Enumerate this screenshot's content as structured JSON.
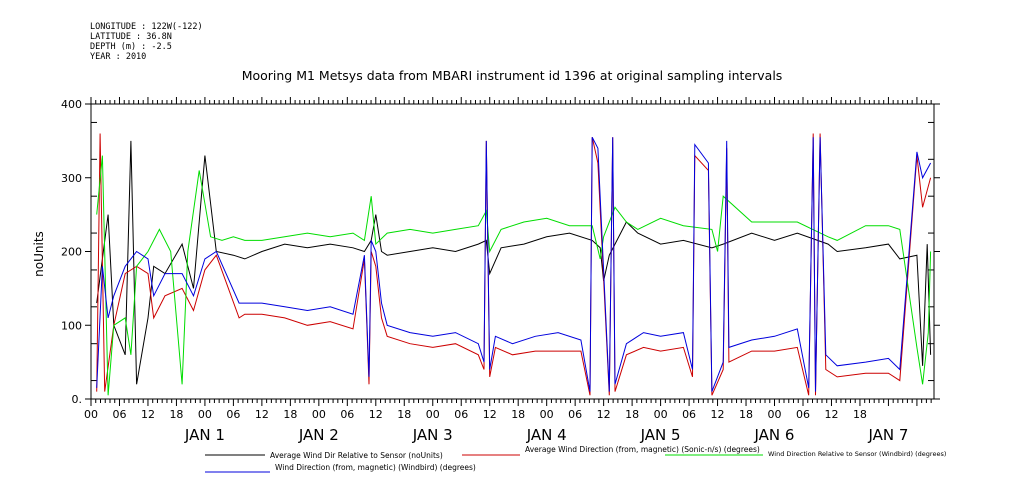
{
  "meta_lines": [
    "LONGITUDE : 122W(-122)",
    "LATITUDE : 36.8N",
    "DEPTH (m) : -2.5",
    "YEAR : 2010"
  ],
  "chart_data": {
    "type": "line",
    "title": "Mooring M1 Metsys data from MBARI instrument id 1396 at original sampling intervals",
    "ylabel": "noUnits",
    "xlabel": "",
    "ylim": [
      0,
      400
    ],
    "yticks": [
      0,
      100,
      200,
      300,
      400
    ],
    "ytick_labels": [
      "0.",
      "100",
      "200",
      "300",
      "400"
    ],
    "xlim": [
      -0.5,
      6.9
    ],
    "hour_tick_labels": [
      "00",
      "06",
      "12",
      "18",
      "00",
      "06",
      "12",
      "18",
      "00",
      "06",
      "12",
      "18",
      "00",
      "06",
      "12",
      "18",
      "00",
      "06",
      "12",
      "18",
      "00",
      "06",
      "12",
      "18",
      "00",
      "06",
      "12",
      "18"
    ],
    "day_labels": [
      "JAN 1",
      "JAN 2",
      "JAN 3",
      "JAN 4",
      "JAN 5",
      "JAN 6",
      "JAN 7"
    ],
    "grid": false,
    "series": [
      {
        "name": "Average Wind Dir Relative to Sensor (noUnits)",
        "color": "#000000",
        "x": [
          -0.45,
          -0.35,
          -0.3,
          -0.2,
          -0.15,
          -0.1,
          0,
          0.05,
          0.15,
          0.3,
          0.4,
          0.5,
          0.6,
          0.75,
          0.85,
          1.0,
          1.2,
          1.4,
          1.6,
          1.8,
          1.9,
          1.96,
          2.0,
          2.05,
          2.1,
          2.3,
          2.5,
          2.7,
          2.9,
          2.97,
          3.0,
          3.1,
          3.3,
          3.5,
          3.7,
          3.9,
          3.97,
          4.0,
          4.05,
          4.2,
          4.3,
          4.5,
          4.7,
          4.95,
          5.05,
          5.3,
          5.5,
          5.7,
          5.97,
          6.05,
          6.3,
          6.5,
          6.6,
          6.75,
          6.8,
          6.84,
          6.87
        ],
        "y": [
          130,
          250,
          100,
          60,
          350,
          20,
          110,
          180,
          170,
          210,
          150,
          330,
          200,
          195,
          190,
          200,
          210,
          205,
          210,
          205,
          200,
          215,
          250,
          200,
          195,
          200,
          205,
          200,
          210,
          215,
          170,
          205,
          210,
          220,
          225,
          215,
          205,
          160,
          195,
          240,
          225,
          210,
          215,
          205,
          210,
          225,
          215,
          225,
          210,
          200,
          205,
          210,
          190,
          195,
          45,
          210,
          60
        ]
      },
      {
        "name": "Average Wind Direction (from, magnetic) (Sonic-n/s) (degrees)",
        "color": "#cc0000",
        "x": [
          -0.45,
          -0.42,
          -0.38,
          -0.3,
          -0.2,
          -0.1,
          0,
          0.05,
          0.15,
          0.3,
          0.4,
          0.5,
          0.6,
          0.8,
          0.85,
          1.0,
          1.2,
          1.4,
          1.6,
          1.8,
          1.9,
          1.94,
          1.96,
          2.0,
          2.05,
          2.1,
          2.3,
          2.5,
          2.7,
          2.9,
          2.95,
          2.97,
          3.0,
          3.05,
          3.2,
          3.4,
          3.6,
          3.8,
          3.88,
          3.9,
          3.95,
          4.05,
          4.08,
          4.1,
          4.2,
          4.35,
          4.5,
          4.7,
          4.78,
          4.8,
          4.92,
          4.95,
          5.05,
          5.08,
          5.1,
          5.3,
          5.5,
          5.7,
          5.8,
          5.84,
          5.86,
          5.9,
          5.95,
          6.05,
          6.3,
          6.5,
          6.6,
          6.75,
          6.8,
          6.87
        ],
        "y": [
          10,
          360,
          10,
          100,
          170,
          180,
          170,
          110,
          140,
          150,
          120,
          175,
          195,
          110,
          115,
          115,
          110,
          100,
          105,
          95,
          190,
          20,
          200,
          180,
          110,
          85,
          75,
          70,
          75,
          60,
          40,
          350,
          30,
          70,
          60,
          65,
          65,
          65,
          5,
          355,
          320,
          5,
          355,
          10,
          60,
          70,
          65,
          70,
          30,
          330,
          310,
          5,
          40,
          340,
          50,
          65,
          65,
          70,
          5,
          360,
          5,
          360,
          40,
          30,
          35,
          35,
          25,
          330,
          260,
          300
        ]
      },
      {
        "name": "Wind Direction Relative to Sensor (Windbird) (degrees)",
        "color": "#00dd00",
        "x": [
          -0.45,
          -0.4,
          -0.35,
          -0.3,
          -0.2,
          -0.15,
          -0.1,
          0,
          0.1,
          0.2,
          0.3,
          0.35,
          0.45,
          0.55,
          0.65,
          0.75,
          0.85,
          1.0,
          1.2,
          1.4,
          1.6,
          1.8,
          1.9,
          1.96,
          2.0,
          2.1,
          2.3,
          2.5,
          2.7,
          2.9,
          2.97,
          3.0,
          3.1,
          3.3,
          3.5,
          3.7,
          3.9,
          3.97,
          4.0,
          4.1,
          4.2,
          4.3,
          4.5,
          4.7,
          4.95,
          5.0,
          5.05,
          5.3,
          5.5,
          5.7,
          5.97,
          6.05,
          6.3,
          6.5,
          6.6,
          6.75,
          6.8,
          6.85,
          6.87
        ],
        "y": [
          250,
          330,
          5,
          100,
          110,
          60,
          180,
          200,
          230,
          200,
          20,
          200,
          310,
          220,
          215,
          220,
          215,
          215,
          220,
          225,
          220,
          225,
          215,
          275,
          210,
          225,
          230,
          225,
          230,
          235,
          255,
          200,
          230,
          240,
          245,
          235,
          235,
          190,
          220,
          260,
          240,
          230,
          245,
          235,
          230,
          200,
          275,
          240,
          240,
          240,
          220,
          215,
          235,
          235,
          230,
          70,
          20,
          90,
          200
        ]
      },
      {
        "name": "Wind Direction (from, magnetic) (Windbird) (degrees)",
        "color": "#0000dd",
        "x": [
          -0.45,
          -0.4,
          -0.35,
          -0.3,
          -0.2,
          -0.1,
          0,
          0.05,
          0.15,
          0.3,
          0.4,
          0.5,
          0.6,
          0.8,
          0.85,
          1.0,
          1.2,
          1.4,
          1.6,
          1.8,
          1.9,
          1.94,
          1.96,
          2.0,
          2.05,
          2.1,
          2.3,
          2.5,
          2.7,
          2.9,
          2.95,
          2.97,
          3.0,
          3.05,
          3.2,
          3.4,
          3.6,
          3.8,
          3.88,
          3.9,
          3.95,
          4.05,
          4.08,
          4.1,
          4.2,
          4.35,
          4.5,
          4.7,
          4.78,
          4.8,
          4.92,
          4.95,
          5.05,
          5.08,
          5.1,
          5.3,
          5.5,
          5.7,
          5.8,
          5.84,
          5.86,
          5.9,
          5.95,
          6.05,
          6.3,
          6.5,
          6.6,
          6.75,
          6.8,
          6.87
        ],
        "y": [
          15,
          180,
          110,
          140,
          180,
          200,
          190,
          140,
          170,
          170,
          140,
          190,
          200,
          130,
          130,
          130,
          125,
          120,
          125,
          115,
          195,
          30,
          215,
          200,
          130,
          100,
          90,
          85,
          90,
          75,
          50,
          350,
          40,
          85,
          75,
          85,
          90,
          80,
          10,
          355,
          340,
          10,
          355,
          20,
          75,
          90,
          85,
          90,
          40,
          345,
          320,
          10,
          50,
          350,
          70,
          80,
          85,
          95,
          15,
          355,
          10,
          355,
          60,
          45,
          50,
          55,
          40,
          335,
          300,
          320
        ]
      }
    ]
  }
}
